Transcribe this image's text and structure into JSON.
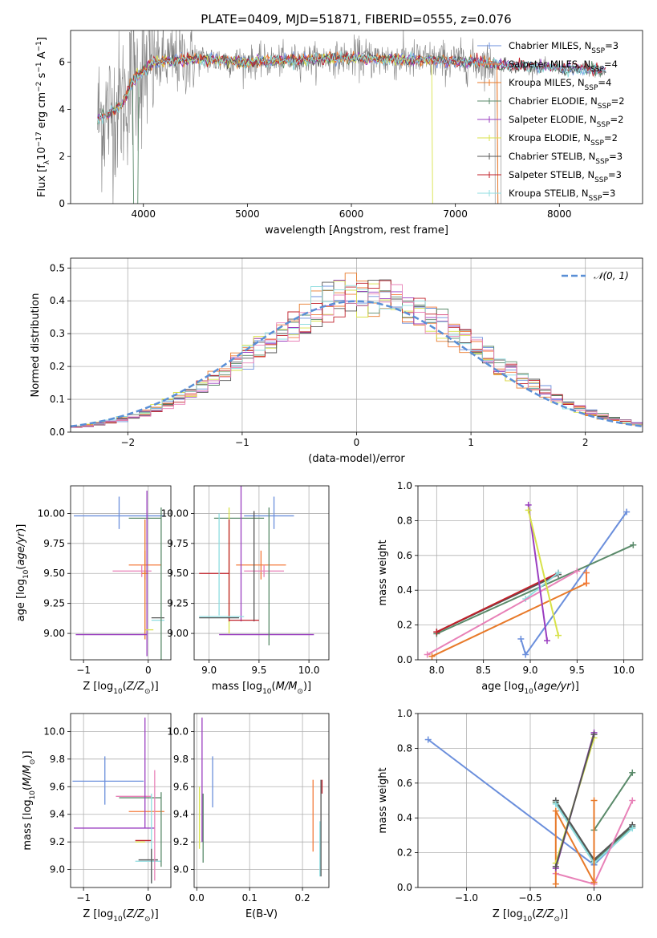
{
  "title": "PLATE=0409, MJD=51871, FIBERID=0555, z=0.076",
  "colors": {
    "grey": "#808080",
    "chabrier_miles": "#6b8fdc",
    "salpeter_miles": "#f47a3a",
    "kroupa_miles": "#e87a2a",
    "chabrier_elodie": "#5a8a6a",
    "salpeter_elodie": "#9a3ec0",
    "kroupa_elodie": "#d8e24a",
    "chabrier_stelib": "#555555",
    "salpeter_stelib": "#c0202a",
    "kroupa_stelib": "#8fdde0",
    "pink": "#e882b8",
    "normal": "#5a8fd6"
  },
  "chart_data": [
    {
      "id": "spectrum",
      "type": "line",
      "xlabel": "wavelength [Angstrom, rest frame]",
      "ylabel": "Flux [f_λ 10^-17 erg cm^-2 s^-1 A^-1]",
      "xlim": [
        3300,
        8800
      ],
      "ylim": [
        0,
        7.35
      ],
      "xticks": [
        4000,
        5000,
        6000,
        7000,
        8000
      ],
      "yticks": [
        0,
        2,
        4,
        6
      ],
      "legend": [
        {
          "name": "Chabrier MILES",
          "n": "3",
          "color": "#6b8fdc"
        },
        {
          "name": "Salpeter MILES",
          "n": "4",
          "color": "#f47a3a"
        },
        {
          "name": "Kroupa MILES",
          "n": "4",
          "color": "#e87a2a"
        },
        {
          "name": "Chabrier ELODIE",
          "n": "2",
          "color": "#5a8a6a"
        },
        {
          "name": "Salpeter ELODIE",
          "n": "2",
          "color": "#9a3ec0"
        },
        {
          "name": "Kroupa ELODIE",
          "n": "2",
          "color": "#d8e24a"
        },
        {
          "name": "Chabrier STELIB",
          "n": "3",
          "color": "#555555"
        },
        {
          "name": "Salpeter STELIB",
          "n": "3",
          "color": "#c0202a"
        },
        {
          "name": "Kroupa STELIB",
          "n": "3",
          "color": "#8fdde0"
        }
      ],
      "continuum": {
        "x": [
          3550,
          3700,
          3800,
          3900,
          4000,
          4100,
          4300,
          4500,
          5000,
          5500,
          6000,
          6500,
          7000,
          7300,
          7500,
          8000,
          8300,
          8500
        ],
        "y": [
          3.6,
          3.9,
          4.3,
          5.2,
          5.6,
          6.0,
          6.1,
          6.15,
          6.0,
          6.1,
          6.2,
          6.1,
          6.05,
          5.95,
          5.85,
          5.75,
          5.7,
          5.55
        ]
      }
    },
    {
      "id": "residuals",
      "type": "histogram",
      "xlabel": "(data-model)/error",
      "ylabel": "Normed distribution",
      "xlim": [
        -2.5,
        2.5
      ],
      "ylim": [
        0,
        0.53
      ],
      "xticks": [
        -2,
        -1,
        0,
        1,
        2
      ],
      "yticks": [
        0,
        0.1,
        0.2,
        0.3,
        0.4,
        0.5
      ],
      "legend": "𝒩(0, 1)",
      "bin_width": 0.1
    },
    {
      "id": "age_vs_Z",
      "type": "scatter",
      "xlabel": "Z [log10(Z/Z⊙)]",
      "ylabel": "age  [log10(age/yr)]",
      "xlim": [
        -1.2,
        0.35
      ],
      "ylim": [
        8.78,
        10.23
      ],
      "xticks": [
        -1,
        0
      ],
      "yticks": [
        9.0,
        9.25,
        9.5,
        9.75,
        10.0
      ],
      "points": [
        {
          "c": "#6b8fdc",
          "x": -0.45,
          "xerr": [
            0.7,
            0.7
          ],
          "y": 9.98,
          "yerr": [
            0.11,
            0.16
          ]
        },
        {
          "c": "#5a8a6a",
          "x": -0.05,
          "xerr": [
            0.25,
            0.25
          ],
          "y": 9.96,
          "yerr": [
            0.0,
            0.0
          ]
        },
        {
          "c": "#f47a3a",
          "x": -0.05,
          "xerr": [
            0.25,
            0.25
          ],
          "y": 9.57,
          "yerr": [
            0.12,
            0.12
          ]
        },
        {
          "c": "#e882b8",
          "x": -0.1,
          "xerr": [
            0.45,
            0.15
          ],
          "y": 9.52,
          "yerr": [
            0.05,
            0.05
          ]
        },
        {
          "c": "#e87a2a",
          "x": -0.05,
          "xerr": [
            0.05,
            0.05
          ],
          "y": 9.5,
          "yerr": [
            0.55,
            0.45
          ]
        },
        {
          "c": "#555555",
          "x": 0.15,
          "xerr": [
            0.1,
            0.1
          ],
          "y": 9.13,
          "yerr": [
            0.0,
            0.0
          ]
        },
        {
          "c": "#8fdde0",
          "x": 0.15,
          "xerr": [
            0.1,
            0.1
          ],
          "y": 9.11,
          "yerr": [
            0.0,
            0.0
          ]
        },
        {
          "c": "#5a8a6a",
          "x": 0.2,
          "xerr": [
            0.0,
            0.0
          ],
          "y": 9.6,
          "yerr": [
            0.82,
            0.45
          ]
        },
        {
          "c": "#9a3ec0",
          "x": -0.02,
          "xerr": [
            1.1,
            0.0
          ],
          "y": 8.99,
          "yerr": [
            0.18,
            1.2
          ]
        },
        {
          "c": "#d8e24a",
          "x": 0.02,
          "xerr": [
            0.06,
            0.06
          ],
          "y": 9.03,
          "yerr": [
            0.0,
            0.0
          ]
        }
      ]
    },
    {
      "id": "age_vs_mass",
      "type": "scatter",
      "xlabel": "mass [log10(M/M⊙)]",
      "ylabel": "",
      "xlim": [
        8.85,
        10.2
      ],
      "ylim": [
        8.78,
        10.23
      ],
      "xticks": [
        9.0,
        9.5,
        10.0
      ],
      "yticks": [
        9.0,
        9.25,
        9.5,
        9.75,
        10.0
      ],
      "points": [
        {
          "c": "#6b8fdc",
          "x": 9.65,
          "xerr": [
            0.3,
            0.2
          ],
          "y": 9.98,
          "yerr": [
            0.11,
            0.16
          ]
        },
        {
          "c": "#5a8a6a",
          "x": 9.3,
          "xerr": [
            0.25,
            0.25
          ],
          "y": 9.96,
          "yerr": [
            0.0,
            0.0
          ]
        },
        {
          "c": "#f47a3a",
          "x": 9.52,
          "xerr": [
            0.25,
            0.25
          ],
          "y": 9.57,
          "yerr": [
            0.12,
            0.12
          ]
        },
        {
          "c": "#e882b8",
          "x": 9.55,
          "xerr": [
            0.2,
            0.2
          ],
          "y": 9.52,
          "yerr": [
            0.05,
            0.05
          ]
        },
        {
          "c": "#d8e24a",
          "x": 9.2,
          "xerr": [
            0.0,
            0.0
          ],
          "y": 9.55,
          "yerr": [
            0.55,
            0.5
          ]
        },
        {
          "c": "#9a3ec0",
          "x": 9.32,
          "xerr": [
            0.0,
            0.0
          ],
          "y": 9.6,
          "yerr": [
            0.5,
            0.7
          ]
        },
        {
          "c": "#c0202a",
          "x": 9.2,
          "xerr": [
            0.3,
            0.0
          ],
          "y": 9.5,
          "yerr": [
            0.4,
            0.45
          ]
        },
        {
          "c": "#555555",
          "x": 9.45,
          "xerr": [
            0.0,
            0.0
          ],
          "y": 9.6,
          "yerr": [
            0.5,
            0.42
          ]
        },
        {
          "c": "#8fdde0",
          "x": 9.1,
          "xerr": [
            0.0,
            0.0
          ],
          "y": 9.6,
          "yerr": [
            0.45,
            0.4
          ]
        },
        {
          "c": "#555555",
          "x": 9.2,
          "xerr": [
            0.3,
            0.1
          ],
          "y": 9.13,
          "yerr": [
            0.0,
            0.0
          ]
        },
        {
          "c": "#8fdde0",
          "x": 9.25,
          "xerr": [
            0.35,
            0.1
          ],
          "y": 9.14,
          "yerr": [
            0.0,
            0.0
          ]
        },
        {
          "c": "#c0202a",
          "x": 9.3,
          "xerr": [
            0.1,
            0.2
          ],
          "y": 9.11,
          "yerr": [
            0.0,
            0.0
          ]
        },
        {
          "c": "#9a3ec0",
          "x": 9.55,
          "xerr": [
            0.45,
            0.5
          ],
          "y": 8.99,
          "yerr": [
            0.0,
            0.0
          ]
        },
        {
          "c": "#5a8a6a",
          "x": 9.6,
          "xerr": [
            0.0,
            0.0
          ],
          "y": 9.5,
          "yerr": [
            0.6,
            0.55
          ]
        }
      ]
    },
    {
      "id": "weight_vs_age",
      "type": "line",
      "xlabel": "age  [log10(age/yr)]",
      "ylabel": "mass weight",
      "xlim": [
        7.8,
        10.2
      ],
      "ylim": [
        0,
        1
      ],
      "xticks": [
        8.0,
        8.5,
        9.0,
        9.5,
        10.0
      ],
      "yticks": [
        0,
        0.2,
        0.4,
        0.6,
        0.8,
        1.0
      ],
      "series": [
        {
          "c": "#6b8fdc",
          "x": [
            8.9,
            8.95,
            10.03
          ],
          "y": [
            0.12,
            0.03,
            0.85
          ]
        },
        {
          "c": "#5a8a6a",
          "x": [
            8.0,
            10.1
          ],
          "y": [
            0.15,
            0.66
          ]
        },
        {
          "c": "#555555",
          "x": [
            8.0,
            9.3
          ],
          "y": [
            0.16,
            0.49
          ]
        },
        {
          "c": "#c0202a",
          "x": [
            8.0,
            9.3
          ],
          "y": [
            0.16,
            0.5
          ]
        },
        {
          "c": "#8fdde0",
          "x": [
            8.95,
            9.3
          ],
          "y": [
            0.35,
            0.5
          ]
        },
        {
          "c": "#e882b8",
          "x": [
            7.9,
            9.5
          ],
          "y": [
            0.03,
            0.51
          ]
        },
        {
          "c": "#e87a2a",
          "x": [
            7.95,
            9.6
          ],
          "y": [
            0.02,
            0.44
          ]
        },
        {
          "c": "#f47a3a",
          "x": [
            9.6,
            9.6
          ],
          "y": [
            0.5,
            0.44
          ]
        },
        {
          "c": "#9a3ec0",
          "x": [
            8.98,
            9.18
          ],
          "y": [
            0.89,
            0.11
          ]
        },
        {
          "c": "#d8e24a",
          "x": [
            8.98,
            9.3
          ],
          "y": [
            0.86,
            0.14
          ]
        }
      ]
    },
    {
      "id": "mass_vs_Z",
      "type": "scatter",
      "xlabel": "Z [log10(Z/Z⊙)]",
      "ylabel": "mass [log10(M/M⊙)]",
      "xlim": [
        -1.2,
        0.35
      ],
      "ylim": [
        8.87,
        10.13
      ],
      "xticks": [
        -1,
        0
      ],
      "yticks": [
        9.0,
        9.2,
        9.4,
        9.6,
        9.8,
        10.0
      ],
      "points": [
        {
          "c": "#6b8fdc",
          "x": -0.67,
          "xerr": [
            0.5,
            0.6
          ],
          "y": 9.64,
          "yerr": [
            0.17,
            0.18
          ]
        },
        {
          "c": "#5a8a6a",
          "x": -0.15,
          "xerr": [
            0.3,
            0.35
          ],
          "y": 9.52,
          "yerr": [
            0.0,
            0.0
          ]
        },
        {
          "c": "#e882b8",
          "x": -0.2,
          "xerr": [
            0.3,
            0.25
          ],
          "y": 9.53,
          "yerr": [
            0.0,
            0.0
          ]
        },
        {
          "c": "#f47a3a",
          "x": -0.05,
          "xerr": [
            0.25,
            0.3
          ],
          "y": 9.42,
          "yerr": [
            0.0,
            0.0
          ]
        },
        {
          "c": "#9a3ec0",
          "x": -0.05,
          "xerr": [
            1.1,
            0.15
          ],
          "y": 9.3,
          "yerr": [
            0.0,
            0.8
          ]
        },
        {
          "c": "#c0202a",
          "x": -0.05,
          "xerr": [
            0.15,
            0.1
          ],
          "y": 9.21,
          "yerr": [
            0.0,
            0.0
          ]
        },
        {
          "c": "#d8e24a",
          "x": -0.05,
          "xerr": [
            0.15,
            0.0
          ],
          "y": 9.2,
          "yerr": [
            0.0,
            0.0
          ]
        },
        {
          "c": "#555555",
          "x": 0.0,
          "xerr": [
            0.15,
            0.15
          ],
          "y": 9.07,
          "yerr": [
            0.0,
            0.0
          ]
        },
        {
          "c": "#8fdde0",
          "x": 0.0,
          "xerr": [
            0.2,
            0.2
          ],
          "y": 9.06,
          "yerr": [
            0.0,
            0.0
          ]
        },
        {
          "c": "#e882b8",
          "x": 0.1,
          "xerr": [
            0.0,
            0.0
          ],
          "y": 9.3,
          "yerr": [
            0.38,
            0.42
          ]
        },
        {
          "c": "#5a8a6a",
          "x": 0.2,
          "xerr": [
            0.0,
            0.0
          ],
          "y": 9.3,
          "yerr": [
            0.28,
            0.26
          ]
        },
        {
          "c": "#8fdde0",
          "x": 0.05,
          "xerr": [
            0.0,
            0.0
          ],
          "y": 9.2,
          "yerr": [
            0.3,
            0.35
          ]
        },
        {
          "c": "#555555",
          "x": 0.05,
          "xerr": [
            0.0,
            0.0
          ],
          "y": 9.05,
          "yerr": [
            0.15,
            0.1
          ]
        }
      ]
    },
    {
      "id": "mass_vs_EBV",
      "type": "scatter",
      "xlabel": "E(B-V)",
      "ylabel": "",
      "xlim": [
        -0.005,
        0.25
      ],
      "ylim": [
        8.87,
        10.13
      ],
      "xticks": [
        0.0,
        0.1,
        0.2
      ],
      "yticks": [
        9.0,
        9.2,
        9.4,
        9.6,
        9.8,
        10.0
      ],
      "points": [
        {
          "c": "#9a3ec0",
          "x": 0.01,
          "xerr": [
            0,
            0
          ],
          "y": 9.7,
          "yerr": [
            0.5,
            0.4
          ]
        },
        {
          "c": "#d8e24a",
          "x": 0.005,
          "xerr": [
            0,
            0
          ],
          "y": 9.35,
          "yerr": [
            0.2,
            0.25
          ]
        },
        {
          "c": "#5a8a6a",
          "x": 0.012,
          "xerr": [
            0,
            0
          ],
          "y": 9.3,
          "yerr": [
            0.25,
            0.25
          ]
        },
        {
          "c": "#6b8fdc",
          "x": 0.03,
          "xerr": [
            0,
            0
          ],
          "y": 9.65,
          "yerr": [
            0.2,
            0.17
          ]
        },
        {
          "c": "#f47a3a",
          "x": 0.22,
          "xerr": [
            0,
            0
          ],
          "y": 9.35,
          "yerr": [
            0.22,
            0.3
          ]
        },
        {
          "c": "#555555",
          "x": 0.235,
          "xerr": [
            0,
            0
          ],
          "y": 9.25,
          "yerr": [
            0.3,
            0.4
          ]
        },
        {
          "c": "#c0202a",
          "x": 0.237,
          "xerr": [
            0,
            0
          ],
          "y": 9.55,
          "yerr": [
            0.0,
            0.1
          ]
        },
        {
          "c": "#8fdde0",
          "x": 0.233,
          "xerr": [
            0,
            0
          ],
          "y": 9.15,
          "yerr": [
            0.2,
            0.2
          ]
        }
      ]
    },
    {
      "id": "weight_vs_Z",
      "type": "line",
      "xlabel": "Z [log10(Z/Z⊙)]",
      "ylabel": "mass weight",
      "xlim": [
        -1.38,
        0.38
      ],
      "ylim": [
        0,
        1
      ],
      "xticks": [
        -1.0,
        -0.5,
        0.0
      ],
      "yticks": [
        0,
        0.2,
        0.4,
        0.6,
        0.8,
        1.0
      ],
      "series": [
        {
          "c": "#6b8fdc",
          "x": [
            -1.3,
            0.0,
            0.3
          ],
          "y": [
            0.85,
            0.13,
            0.35
          ]
        },
        {
          "c": "#5a8a6a",
          "x": [
            -0.3,
            0.0,
            0.3
          ],
          "y": [
            0.49,
            0.15,
            0.35
          ]
        },
        {
          "c": "#555555",
          "x": [
            -0.3,
            0.0,
            0.3
          ],
          "y": [
            0.5,
            0.16,
            0.36
          ]
        },
        {
          "c": "#8fdde0",
          "x": [
            -0.3,
            0.0,
            0.3
          ],
          "y": [
            0.48,
            0.14,
            0.34
          ]
        },
        {
          "c": "#5a8a6a",
          "x": [
            0.0,
            0.3
          ],
          "y": [
            0.33,
            0.66
          ]
        },
        {
          "c": "#e882b8",
          "x": [
            -0.3,
            0.0,
            0.3
          ],
          "y": [
            0.08,
            0.02,
            0.5
          ]
        },
        {
          "c": "#e87a2a",
          "x": [
            -0.3,
            -0.3,
            0.0,
            0.0
          ],
          "y": [
            0.02,
            0.44,
            0.03,
            0.5
          ]
        },
        {
          "c": "#9a3ec0",
          "x": [
            -0.3,
            0.0
          ],
          "y": [
            0.11,
            0.89
          ]
        },
        {
          "c": "#d8e24a",
          "x": [
            -0.3,
            0.0
          ],
          "y": [
            0.14,
            0.86
          ]
        },
        {
          "c": "#555555",
          "x": [
            -0.3,
            0.0
          ],
          "y": [
            0.12,
            0.88
          ]
        }
      ]
    }
  ]
}
